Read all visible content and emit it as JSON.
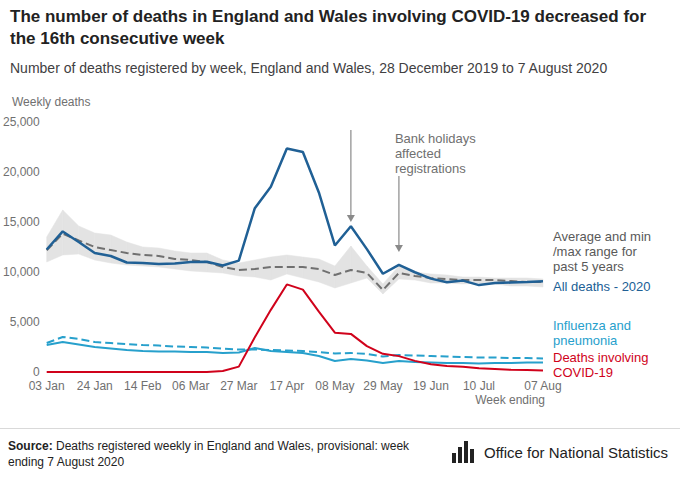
{
  "chart_data": {
    "type": "line",
    "title": "The number of deaths in England and Wales involving COVID-19 decreased for the 16th consecutive week",
    "subtitle": "Number of deaths registered by week, England and Wales, 28 December 2019 to 7 August 2020",
    "ylabel": "Weekly deaths",
    "xlabel": "Week ending",
    "annotation": "Bank holidays affected registrations",
    "source_label": "Source:",
    "source": "Deaths registered weekly in England and Wales, provisional: week ending 7 August 2020",
    "logo_text": "Office for National Statistics",
    "categories": [
      "03 Jan",
      null,
      null,
      "24 Jan",
      null,
      null,
      "14 Feb",
      null,
      null,
      "06 Mar",
      null,
      null,
      "27 Mar",
      null,
      null,
      "17 Apr",
      null,
      null,
      "08 May",
      null,
      null,
      "29 May",
      null,
      null,
      "19 Jun",
      null,
      null,
      "10 Jul",
      null,
      null,
      null,
      "07 Aug"
    ],
    "ylim": [
      0,
      25000
    ],
    "yticks": [
      0,
      {
        "value": 5000,
        "label": "5,000"
      },
      {
        "value": 10000,
        "label": "10,000"
      },
      {
        "value": 15000,
        "label": "15,000"
      },
      {
        "value": 20000,
        "label": "20,000"
      },
      {
        "value": 25000,
        "label": "25,000"
      }
    ],
    "grid": false,
    "series": [
      {
        "name": "Average and min/max range for past 5 years",
        "color": "#707070",
        "line_style": "dashed",
        "values": [
          12175,
          13822,
          13156,
          12500,
          12200,
          11900,
          11700,
          11600,
          11300,
          11200,
          11000,
          10500,
          10200,
          10300,
          10500,
          10500,
          10500,
          10300,
          9700,
          10200,
          9900,
          8200,
          9900,
          9600,
          9400,
          9300,
          9200,
          9200,
          9200,
          9100,
          9000,
          9000
        ],
        "min": [
          11000,
          11700,
          11800,
          11200,
          10900,
          10700,
          10600,
          10500,
          10300,
          10100,
          10000,
          9900,
          9600,
          9500,
          9200,
          9800,
          9400,
          9000,
          8400,
          8900,
          9400,
          7800,
          9300,
          9200,
          8900,
          8900,
          8800,
          8900,
          8800,
          8600,
          8600,
          8500
        ],
        "max": [
          13500,
          16200,
          14600,
          13900,
          13700,
          13000,
          12500,
          12400,
          12100,
          11900,
          11900,
          11200,
          10900,
          11200,
          11500,
          11700,
          11500,
          11300,
          10600,
          12600,
          10600,
          8800,
          10600,
          10000,
          9800,
          9700,
          9500,
          9500,
          9400,
          9400,
          9400,
          9300
        ]
      },
      {
        "name": "All deaths - 2020",
        "color": "#206095",
        "line_style": "solid",
        "values": [
          12254,
          14058,
          13000,
          11900,
          11600,
          10950,
          10900,
          10800,
          10850,
          11000,
          11019,
          10645,
          11141,
          16387,
          18516,
          22351,
          21997,
          17953,
          12657,
          14573,
          12288,
          9824,
          10709,
          9976,
          9339,
          8979,
          9140,
          8690,
          8891,
          8947,
          9000,
          9066
        ]
      },
      {
        "color": "#27a0cc",
        "line_style": "dashed",
        "values": [
          2900,
          3500,
          3300,
          3000,
          2900,
          2800,
          2700,
          2650,
          2550,
          2500,
          2450,
          2350,
          2250,
          2250,
          2200,
          2150,
          2100,
          2000,
          1850,
          1900,
          1800,
          1550,
          1700,
          1650,
          1600,
          1550,
          1500,
          1450,
          1450,
          1400,
          1400,
          1350
        ]
      },
      {
        "name": "Influenza and pneumonia",
        "color": "#27a0cc",
        "line_style": "solid",
        "values": [
          2700,
          3000,
          2750,
          2500,
          2350,
          2200,
          2100,
          2050,
          2050,
          2000,
          2000,
          1900,
          1950,
          2400,
          2100,
          2000,
          1900,
          1600,
          1100,
          1300,
          1150,
          900,
          1100,
          1000,
          950,
          900,
          900,
          850,
          900,
          900,
          950,
          950
        ]
      },
      {
        "name": "Deaths involving COVID-19",
        "color": "#d0021b",
        "line_style": "solid",
        "values": [
          0,
          0,
          0,
          0,
          0,
          0,
          0,
          0,
          0,
          0,
          5,
          103,
          539,
          3475,
          6213,
          8758,
          8237,
          6035,
          3930,
          3810,
          2589,
          1822,
          1588,
          1114,
          783,
          606,
          532,
          366,
          295,
          217,
          193,
          152
        ]
      }
    ]
  }
}
